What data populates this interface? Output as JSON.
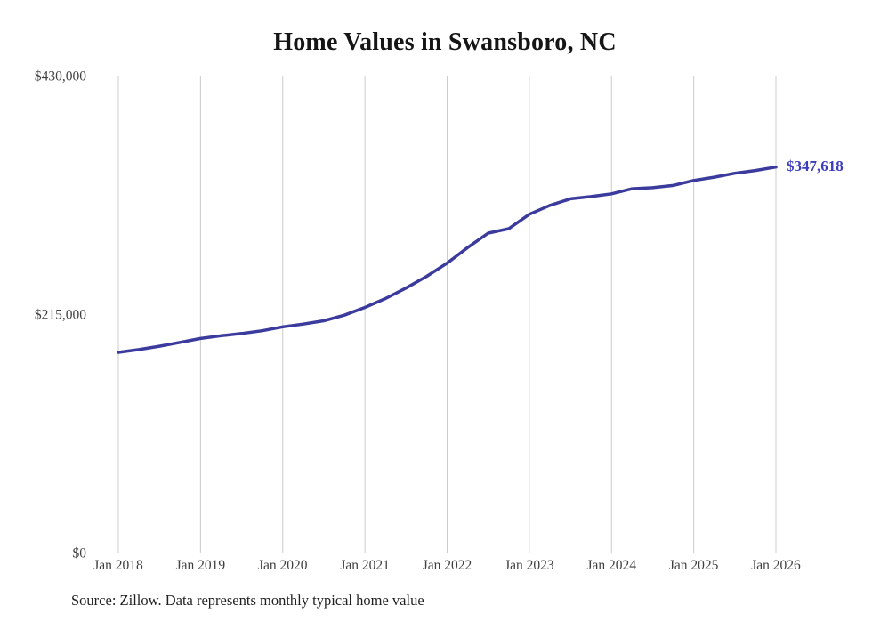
{
  "page": {
    "background": "#ffffff"
  },
  "chart_data": {
    "type": "line",
    "title": "Home Values in Swansboro, NC",
    "xlabel": "",
    "ylabel": "",
    "ylim": [
      0,
      430000
    ],
    "x_unit": "months since Jan 2018",
    "x_range_months": [
      0,
      96
    ],
    "grid": "vertical-only",
    "legend": "none",
    "y_ticks": [
      {
        "value": 430000,
        "label": "$430,000"
      },
      {
        "value": 215000,
        "label": "$215,000"
      },
      {
        "value": 0,
        "label": "$0"
      }
    ],
    "x_ticks": [
      {
        "month_offset": 0,
        "label": "Jan 2018"
      },
      {
        "month_offset": 12,
        "label": "Jan 2019"
      },
      {
        "month_offset": 24,
        "label": "Jan 2020"
      },
      {
        "month_offset": 36,
        "label": "Jan 2021"
      },
      {
        "month_offset": 48,
        "label": "Jan 2022"
      },
      {
        "month_offset": 60,
        "label": "Jan 2023"
      },
      {
        "month_offset": 72,
        "label": "Jan 2024"
      },
      {
        "month_offset": 84,
        "label": "Jan 2025"
      },
      {
        "month_offset": 96,
        "label": "Jan 2026"
      }
    ],
    "series": [
      {
        "name": "Typical home value",
        "color": "#3b3b9d",
        "points_month_value": [
          [
            0,
            180500
          ],
          [
            3,
            183000
          ],
          [
            6,
            186000
          ],
          [
            9,
            189500
          ],
          [
            12,
            193000
          ],
          [
            15,
            195500
          ],
          [
            18,
            197500
          ],
          [
            21,
            200000
          ],
          [
            24,
            203500
          ],
          [
            27,
            206000
          ],
          [
            30,
            209000
          ],
          [
            33,
            214000
          ],
          [
            36,
            221000
          ],
          [
            39,
            229000
          ],
          [
            42,
            238500
          ],
          [
            45,
            249000
          ],
          [
            48,
            261000
          ],
          [
            51,
            275000
          ],
          [
            54,
            288000
          ],
          [
            57,
            292000
          ],
          [
            60,
            305000
          ],
          [
            63,
            313000
          ],
          [
            66,
            319000
          ],
          [
            69,
            321000
          ],
          [
            72,
            323500
          ],
          [
            75,
            328000
          ],
          [
            78,
            329000
          ],
          [
            81,
            331000
          ],
          [
            84,
            335500
          ],
          [
            87,
            338500
          ],
          [
            90,
            342000
          ],
          [
            93,
            344500
          ],
          [
            96,
            347618
          ]
        ]
      }
    ],
    "latest_value": 347618,
    "end_label": "$347,618",
    "end_label_color": "#3d3dbb"
  },
  "source_note": "Source: Zillow. Data represents monthly typical home value",
  "colors": {
    "gridline": "#cccccc",
    "axis_text": "#3f3f3f",
    "title_text": "#151515"
  }
}
